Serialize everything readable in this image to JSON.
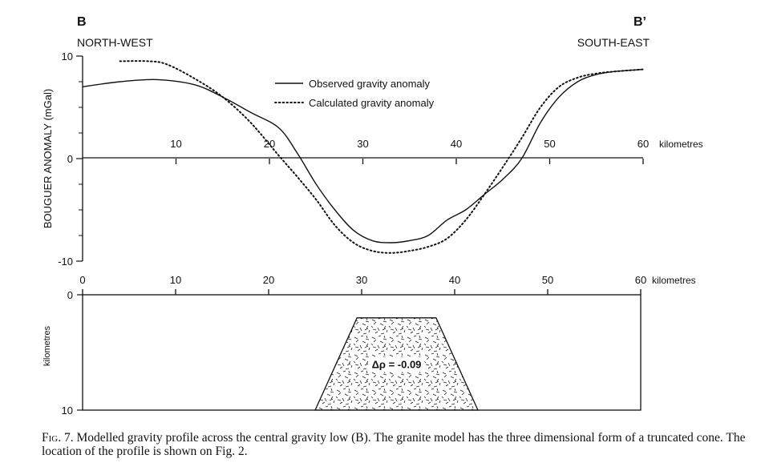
{
  "chart_data": [
    {
      "type": "line",
      "profile_start": "B",
      "profile_end": "B’",
      "direction_left": "NORTH-WEST",
      "direction_right": "SOUTH-EAST",
      "ylabel": "BOUGUER ANOMALY (mGal)",
      "xlabel_unit": "kilometres",
      "xlim": [
        0,
        60
      ],
      "ylim": [
        -10,
        10
      ],
      "x_ticks": [
        10,
        20,
        30,
        40,
        50,
        60
      ],
      "y_ticks": [
        10,
        0,
        -10
      ],
      "legend_position": "top-center",
      "series": [
        {
          "name": "Observed gravity anomaly",
          "style": "solid",
          "x": [
            0,
            4,
            8,
            12,
            15,
            18,
            21,
            23,
            25,
            27,
            29,
            31,
            33,
            35,
            37,
            39,
            41,
            43,
            45,
            47,
            49,
            51,
            53,
            55,
            57,
            60
          ],
          "y": [
            7.0,
            7.5,
            7.7,
            7.2,
            6.0,
            4.5,
            3.0,
            0.5,
            -2.5,
            -5.0,
            -7.0,
            -8.0,
            -8.2,
            -8.0,
            -7.5,
            -6.0,
            -5.0,
            -3.5,
            -2.0,
            0.0,
            3.5,
            6.0,
            7.5,
            8.2,
            8.5,
            8.7
          ]
        },
        {
          "name": "Calculated gravity anomaly",
          "style": "dotted",
          "x": [
            4,
            7,
            9,
            12,
            15,
            18,
            21,
            23,
            25,
            27,
            29,
            31,
            33,
            35,
            37,
            39,
            41,
            43,
            45,
            47,
            49,
            51,
            53,
            55,
            57,
            60
          ],
          "y": [
            9.5,
            9.5,
            9.2,
            7.8,
            6.0,
            3.5,
            0.3,
            -1.8,
            -4.0,
            -6.5,
            -8.2,
            -9.0,
            -9.2,
            -9.0,
            -8.6,
            -7.8,
            -6.0,
            -3.5,
            -0.8,
            2.0,
            5.0,
            7.0,
            7.9,
            8.3,
            8.5,
            8.7
          ]
        }
      ]
    },
    {
      "type": "area",
      "ylabel": "kilometres",
      "xlabel_unit": "kilometres",
      "xlim": [
        0,
        60
      ],
      "ylim": [
        0,
        10
      ],
      "x_ticks": [
        0,
        10,
        20,
        30,
        40,
        50,
        60
      ],
      "y_ticks": [
        0,
        10
      ],
      "model_label": "Δρ = -0.09",
      "model_body": {
        "shape": "truncated cone",
        "top_depth_km": 2,
        "bottom_depth_km": 10,
        "top_x_km": [
          29.5,
          38.0
        ],
        "bottom_x_km": [
          25.0,
          42.5
        ]
      }
    }
  ],
  "caption": {
    "fig_label": "Fig. 7.",
    "text": "Modelled gravity profile across the central gravity low (B). The granite model has the three dimensional form of a truncated cone. The location of the profile is shown on Fig. 2."
  }
}
